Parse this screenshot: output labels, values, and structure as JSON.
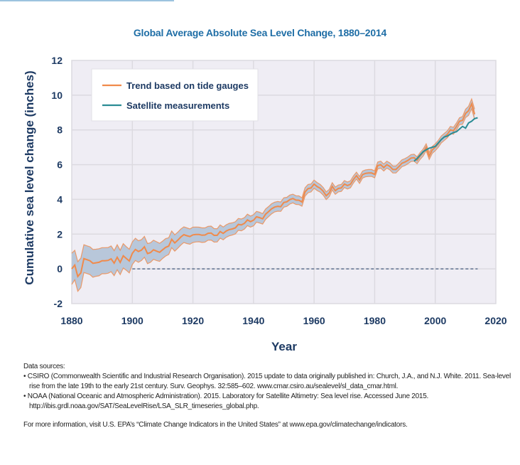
{
  "page": {
    "footer": {
      "heading": "Data sources:",
      "sources": [
        "• CSIRO (Commonwealth Scientific and Industrial Research Organisation). 2015 update to data originally published in: Church, J.A., and N.J. White. 2011. Sea-level rise from the late 19th to the early 21st century. Surv. Geophys. 32:585–602. www.cmar.csiro.au/sealevel/sl_data_cmar.html.",
        "• NOAA (National Oceanic and Atmospheric Administration). 2015. Laboratory for Satellite Altimetry: Sea level rise. Accessed June 2015. http://ibis.grdl.noaa.gov/SAT/SeaLevelRise/LSA_SLR_timeseries_global.php."
      ],
      "more_info": "For more information, visit U.S. EPA’s “Climate Change Indicators in the United States” at www.epa.gov/climatechange/indicators."
    }
  },
  "colors": {
    "title": "#1f6ea6",
    "axis_text": "#1d3a63",
    "plot_bg": "#efedf4",
    "grid": "#dcdae0",
    "tide_line": "#f08a4b",
    "band_fill": "#b8c7da",
    "satellite_line": "#2a8c94",
    "zero_line": "#1d3a63"
  },
  "chart_data": {
    "type": "line",
    "title": "Global Average Absolute Sea Level Change, 1880–2014",
    "xlabel": "Year",
    "ylabel": "Cumulative sea level change (inches)",
    "xlim": [
      1880,
      2020
    ],
    "ylim": [
      -2,
      12
    ],
    "xticks": [
      1880,
      1900,
      1920,
      1940,
      1960,
      1980,
      2000,
      2020
    ],
    "yticks": [
      -2,
      0,
      2,
      4,
      6,
      8,
      10,
      12
    ],
    "grid": true,
    "legend_position": "top-left",
    "reference_line": {
      "y": 0,
      "x_start": 1900,
      "x_end": 2014,
      "style": "dashed"
    },
    "series": [
      {
        "name": "Trend based on tide gauges",
        "x": [
          1880,
          1881,
          1882,
          1883,
          1884,
          1885,
          1886,
          1887,
          1888,
          1889,
          1890,
          1891,
          1892,
          1893,
          1894,
          1895,
          1896,
          1897,
          1898,
          1899,
          1900,
          1901,
          1902,
          1903,
          1904,
          1905,
          1906,
          1907,
          1908,
          1909,
          1910,
          1911,
          1912,
          1913,
          1914,
          1915,
          1916,
          1917,
          1918,
          1919,
          1920,
          1921,
          1922,
          1923,
          1924,
          1925,
          1926,
          1927,
          1928,
          1929,
          1930,
          1931,
          1932,
          1933,
          1934,
          1935,
          1936,
          1937,
          1938,
          1939,
          1940,
          1941,
          1942,
          1943,
          1944,
          1945,
          1946,
          1947,
          1948,
          1949,
          1950,
          1951,
          1952,
          1953,
          1954,
          1955,
          1956,
          1957,
          1958,
          1959,
          1960,
          1961,
          1962,
          1963,
          1964,
          1965,
          1966,
          1967,
          1968,
          1969,
          1970,
          1971,
          1972,
          1973,
          1974,
          1975,
          1976,
          1977,
          1978,
          1979,
          1980,
          1981,
          1982,
          1983,
          1984,
          1985,
          1986,
          1987,
          1988,
          1989,
          1990,
          1991,
          1992,
          1993,
          1994,
          1995,
          1996,
          1997,
          1998,
          1999,
          2000,
          2001,
          2002,
          2003,
          2004,
          2005,
          2006,
          2007,
          2008,
          2009,
          2010,
          2011,
          2012,
          2013
        ],
        "values": [
          0.0,
          0.22,
          -0.44,
          -0.23,
          0.59,
          0.53,
          0.47,
          0.32,
          0.35,
          0.38,
          0.47,
          0.47,
          0.49,
          0.58,
          0.33,
          0.67,
          0.37,
          0.75,
          0.6,
          0.45,
          0.9,
          1.12,
          1.0,
          1.08,
          1.27,
          0.88,
          0.94,
          1.1,
          1.02,
          0.95,
          1.1,
          1.24,
          1.31,
          1.7,
          1.49,
          1.65,
          1.83,
          1.97,
          1.91,
          1.86,
          1.96,
          1.98,
          1.98,
          1.94,
          1.95,
          2.05,
          2.06,
          1.93,
          1.93,
          2.15,
          2.04,
          2.18,
          2.26,
          2.3,
          2.36,
          2.56,
          2.53,
          2.62,
          2.82,
          2.72,
          2.8,
          3.0,
          2.95,
          2.88,
          3.15,
          3.3,
          3.46,
          3.56,
          3.6,
          3.58,
          3.82,
          3.86,
          3.99,
          4.05,
          3.96,
          3.95,
          3.85,
          4.43,
          4.62,
          4.66,
          4.88,
          4.74,
          4.64,
          4.47,
          4.21,
          4.37,
          4.75,
          4.5,
          4.63,
          4.66,
          4.88,
          4.8,
          4.87,
          5.15,
          5.37,
          5.12,
          5.43,
          5.5,
          5.52,
          5.52,
          5.44,
          5.95,
          6.0,
          5.83,
          6.0,
          5.9,
          5.72,
          5.72,
          5.89,
          6.08,
          6.15,
          6.25,
          6.38,
          6.4,
          6.25,
          6.5,
          6.7,
          7.0,
          6.5,
          6.85,
          7.0,
          7.2,
          7.45,
          7.6,
          7.75,
          8.0,
          7.95,
          8.2,
          8.5,
          8.55,
          8.95,
          9.1,
          9.5,
          8.9
        ],
        "uncertainty": [
          0.9,
          0.85,
          0.85,
          0.85,
          0.8,
          0.8,
          0.8,
          0.8,
          0.78,
          0.78,
          0.75,
          0.75,
          0.74,
          0.74,
          0.72,
          0.72,
          0.7,
          0.7,
          0.68,
          0.68,
          0.65,
          0.64,
          0.62,
          0.6,
          0.6,
          0.58,
          0.56,
          0.55,
          0.54,
          0.52,
          0.5,
          0.5,
          0.48,
          0.48,
          0.47,
          0.46,
          0.46,
          0.45,
          0.45,
          0.44,
          0.44,
          0.43,
          0.42,
          0.42,
          0.41,
          0.4,
          0.4,
          0.39,
          0.38,
          0.38,
          0.37,
          0.36,
          0.36,
          0.35,
          0.35,
          0.34,
          0.34,
          0.33,
          0.33,
          0.32,
          0.32,
          0.31,
          0.31,
          0.3,
          0.3,
          0.29,
          0.29,
          0.28,
          0.28,
          0.27,
          0.27,
          0.26,
          0.26,
          0.25,
          0.25,
          0.25,
          0.24,
          0.24,
          0.24,
          0.23,
          0.23,
          0.23,
          0.22,
          0.22,
          0.22,
          0.21,
          0.21,
          0.21,
          0.2,
          0.2,
          0.2,
          0.2,
          0.2,
          0.2,
          0.2,
          0.2,
          0.2,
          0.2,
          0.2,
          0.2,
          0.2,
          0.2,
          0.2,
          0.2,
          0.2,
          0.2,
          0.2,
          0.2,
          0.2,
          0.2,
          0.2,
          0.2,
          0.2,
          0.2,
          0.2,
          0.2,
          0.2,
          0.2,
          0.2,
          0.2,
          0.2,
          0.2,
          0.2,
          0.2,
          0.2,
          0.2,
          0.2,
          0.2,
          0.2,
          0.22,
          0.24,
          0.26,
          0.28,
          0.3
        ]
      },
      {
        "name": "Satellite measurements",
        "x": [
          1993,
          1994,
          1995,
          1996,
          1997,
          1998,
          1999,
          2000,
          2001,
          2002,
          2003,
          2004,
          2005,
          2006,
          2007,
          2008,
          2009,
          2010,
          2011,
          2012,
          2013,
          2014
        ],
        "values": [
          6.2,
          6.35,
          6.55,
          6.75,
          6.85,
          6.95,
          7.0,
          7.05,
          7.25,
          7.45,
          7.6,
          7.65,
          7.75,
          7.85,
          7.9,
          8.05,
          8.2,
          8.1,
          8.4,
          8.5,
          8.65,
          8.7
        ]
      }
    ]
  }
}
